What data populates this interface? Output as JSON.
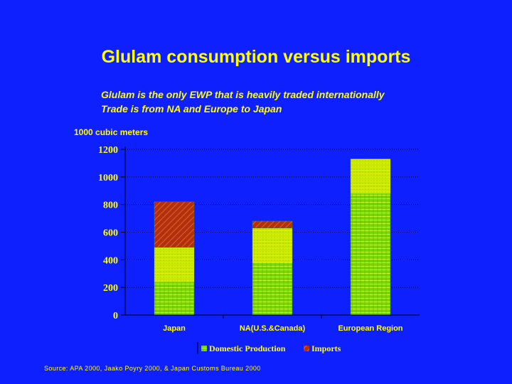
{
  "slide": {
    "title": "Glulam consumption versus imports",
    "subtitle_lines": [
      "Glulam is the only EWP that is heavily traded internationally",
      "Trade is from NA and Europe to Japan"
    ],
    "source": "Source: APA 2000, Jaako Poyry 2000, & Japan Customs Bureau 2000"
  },
  "colors": {
    "background": "#0f20ff",
    "text": "#ffff00",
    "domestic": "#7cd600",
    "imports": "#b03010",
    "highlight": "#ffff00"
  },
  "chart_data": {
    "type": "bar",
    "stacked": true,
    "ylabel": "1000 cubic meters",
    "ylim": [
      0,
      1200
    ],
    "yticks": [
      0,
      200,
      400,
      600,
      800,
      1000,
      1200
    ],
    "grid": true,
    "categories": [
      "Japan",
      "NA(U.S.&Canada)",
      "European Region"
    ],
    "series": [
      {
        "name": "Domestic Production",
        "values": [
          490,
          630,
          1130
        ]
      },
      {
        "name": "Imports",
        "values": [
          330,
          50,
          0
        ]
      }
    ],
    "legend": "bottom"
  }
}
